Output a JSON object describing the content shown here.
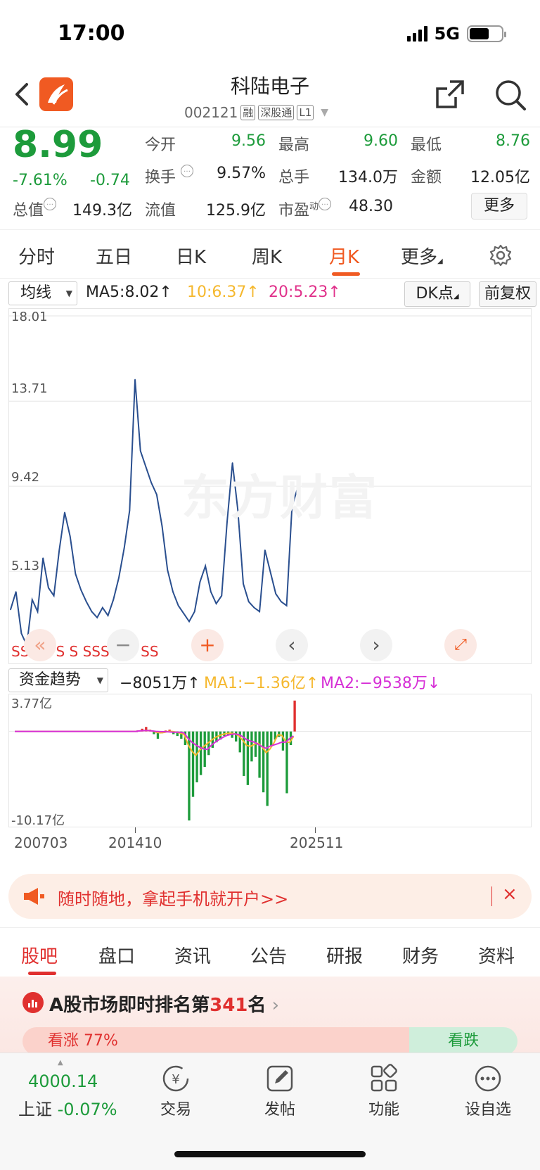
{
  "status_bar": {
    "time": "17:00",
    "network": "5G"
  },
  "header": {
    "stock_name": "科陆电子",
    "stock_code": "002121",
    "tags": [
      "融",
      "深股通",
      "L1"
    ]
  },
  "quote": {
    "price": "8.99",
    "change_pct": "-7.61%",
    "change_abs": "-0.74",
    "stats": [
      {
        "label": "今开",
        "value": "9.56"
      },
      {
        "label": "最高",
        "value": "9.60"
      },
      {
        "label": "最低",
        "value": "8.76"
      },
      {
        "label": "换手",
        "value": "9.57%"
      },
      {
        "label": "总手",
        "value": "134.0万"
      },
      {
        "label": "金额",
        "value": "12.05亿"
      },
      {
        "label": "总值",
        "value": "149.3亿"
      },
      {
        "label": "流值",
        "value": "125.9亿"
      },
      {
        "label": "市盈",
        "value": "48.30"
      }
    ],
    "pe_sup": "动",
    "more_label": "更多"
  },
  "period_tabs": [
    "分时",
    "五日",
    "日K",
    "周K",
    "月K",
    "更多"
  ],
  "active_period": "月K",
  "ma_bar": {
    "selector": "均线",
    "ma5": "MA5:8.02↑",
    "ma10": "10:6.37↑",
    "ma20": "20:5.23↑",
    "dk_label": "DK点",
    "fq_label": "前复权"
  },
  "colors": {
    "up": "#e0302f",
    "down": "#1d9b3b",
    "accent": "#f05a22",
    "line": "#2a4f8f",
    "ma1": "#f5b82e",
    "ma2": "#d62fd6"
  },
  "chart_data": [
    {
      "type": "line",
      "ylim": [
        0.84,
        18.01
      ],
      "y_ticks": [
        "18.01",
        "13.71",
        "9.42",
        "5.13"
      ],
      "x_ticks": [
        "200703",
        "201410",
        "202511"
      ],
      "series": [
        {
          "values": [
            3.2,
            4.1,
            2.0,
            1.4,
            3.7,
            3.1,
            5.8,
            4.3,
            3.9,
            6.2,
            8.1,
            6.9,
            5.0,
            4.2,
            3.6,
            3.1,
            2.8,
            3.3,
            2.9,
            3.7,
            4.8,
            6.3,
            8.2,
            14.8,
            11.2,
            10.4,
            9.6,
            9.0,
            7.4,
            5.2,
            4.1,
            3.4,
            3.0,
            2.6,
            3.1,
            4.6,
            5.4,
            4.1,
            3.5,
            3.9,
            7.6,
            10.6,
            8.2,
            4.5,
            3.6,
            3.3,
            3.1,
            6.2,
            5.1,
            4.0,
            3.6,
            3.4,
            8.4,
            9.3
          ]
        }
      ]
    },
    {
      "type": "bar",
      "title": "资金趋势",
      "ylim": [
        -10.17,
        3.77
      ],
      "y_ticks": [
        "3.77亿",
        "-10.17亿"
      ],
      "readouts": {
        "main": "−8051万↑",
        "ma1": "MA1:−1.36亿↑",
        "ma2": "MA2:−9538万↓"
      },
      "series": [
        {
          "values": [
            0.1,
            0.3,
            0.5,
            0.2,
            -0.3,
            -0.8,
            -0.2,
            0.1,
            0.2,
            -0.3,
            -0.5,
            -0.8,
            -1.5,
            -9.8,
            -7.2,
            -5.6,
            -4.8,
            -3.9,
            -2.6,
            -1.8,
            -1.2,
            -0.9,
            -0.5,
            -0.4,
            -0.7,
            -1.1,
            -2.3,
            -4.9,
            -5.9,
            -3.3,
            -2.8,
            -5.1,
            -6.7,
            -8.2,
            -1.6,
            -0.9,
            -0.6,
            -2.1,
            -6.8,
            -1.5,
            3.4
          ]
        }
      ]
    }
  ],
  "fund_selector": "资金趋势",
  "banner": {
    "text": "随时随地，拿起手机就开户>>"
  },
  "section_tabs": [
    "股吧",
    "盘口",
    "资讯",
    "公告",
    "研报",
    "财务",
    "资料"
  ],
  "rank": {
    "prefix": "A股市场即时排名第",
    "num": "341",
    "suffix": "名"
  },
  "vote": {
    "up": "看涨 77%",
    "down": "看跌"
  },
  "bottom_nav": {
    "index_value": "4000.14",
    "index_name": "上证",
    "index_change": "-0.07%",
    "items": [
      "交易",
      "发帖",
      "功能",
      "设自选"
    ]
  }
}
